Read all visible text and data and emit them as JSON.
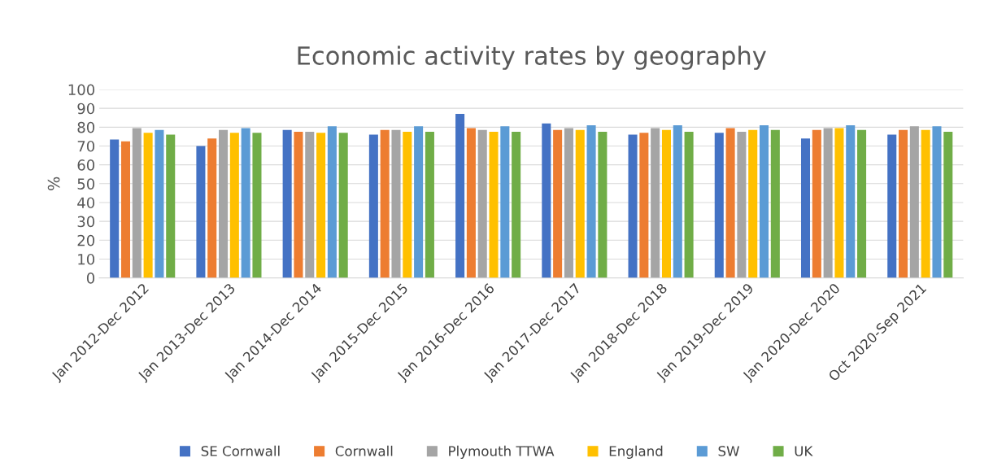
{
  "chart_data": {
    "type": "bar",
    "title": "Economic activity rates by geography",
    "ylabel": "%",
    "categories": [
      "Jan 2012-Dec 2012",
      "Jan 2013-Dec 2013",
      "Jan 2014-Dec 2014",
      "Jan 2015-Dec 2015",
      "Jan 2016-Dec 2016",
      "Jan 2017-Dec 2017",
      "Jan 2018-Dec 2018",
      "Jan 2019-Dec 2019",
      "Jan 2020-Dec 2020",
      "Oct 2020-Sep 2021"
    ],
    "series": [
      {
        "name": "SE Cornwall",
        "color": "#4472c4",
        "values": [
          73.5,
          70,
          78.5,
          76,
          87,
          82,
          76,
          77,
          74,
          76
        ]
      },
      {
        "name": "Cornwall",
        "color": "#ed7d31",
        "values": [
          72.5,
          74,
          77.5,
          78.5,
          79.5,
          78.5,
          77,
          79.5,
          78.5,
          78.5
        ]
      },
      {
        "name": "Plymouth TTWA",
        "color": "#a5a5a5",
        "values": [
          79.5,
          78.5,
          77.5,
          78.5,
          78.5,
          79.5,
          79.5,
          77.5,
          79.5,
          80.5
        ]
      },
      {
        "name": "England",
        "color": "#ffc000",
        "values": [
          77,
          77,
          77,
          77.5,
          77.5,
          78.5,
          78.5,
          78.5,
          79.5,
          78.5
        ]
      },
      {
        "name": "SW",
        "color": "#5b9bd5",
        "values": [
          78.5,
          79.5,
          80.5,
          80.5,
          80.5,
          81,
          81,
          81,
          81,
          80.5
        ]
      },
      {
        "name": "UK",
        "color": "#70ad47",
        "values": [
          76,
          77,
          77,
          77.5,
          77.5,
          77.5,
          77.5,
          78.5,
          78.5,
          77.5
        ]
      }
    ],
    "ylim": [
      0,
      100
    ],
    "yticks": [
      0,
      10,
      20,
      30,
      40,
      50,
      60,
      70,
      80,
      90,
      100
    ],
    "grid": "y",
    "legend": "bottom"
  }
}
